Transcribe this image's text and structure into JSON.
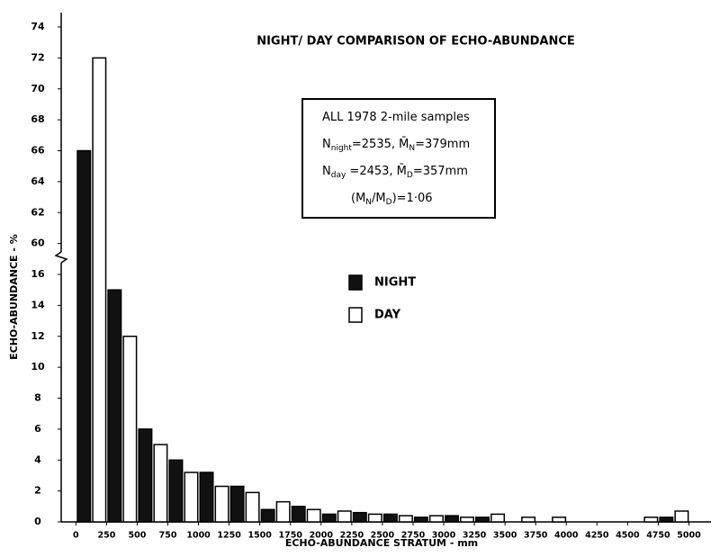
{
  "chart_data": {
    "type": "bar",
    "title": "NIGHT/ DAY COMPARISON OF ECHO-ABUNDANCE",
    "xlabel": "ECHO-ABUNDANCE STRATUM - mm",
    "ylabel": "ECHO-ABUNDANCE - %",
    "x": [
      0,
      250,
      500,
      750,
      1000,
      1250,
      1500,
      1750,
      2000,
      2250,
      2500,
      2750,
      3000,
      3250,
      3500,
      3750,
      4000,
      4250,
      4500,
      4750
    ],
    "series": [
      {
        "name": "NIGHT",
        "color": "#111111",
        "values": [
          66,
          15,
          6,
          4,
          3.2,
          2.3,
          0.8,
          1.0,
          0.5,
          0.6,
          0.5,
          0.3,
          0.4,
          0.3,
          0,
          0,
          0,
          0,
          0,
          0.3
        ]
      },
      {
        "name": "DAY",
        "color": "#ffffff",
        "values": [
          72,
          12,
          5,
          3.2,
          2.3,
          1.9,
          1.3,
          0.8,
          0.7,
          0.5,
          0.4,
          0.4,
          0.3,
          0.5,
          0.3,
          0.3,
          0,
          0,
          0.3,
          0.7
        ]
      }
    ],
    "xlim": [
      -120,
      5180
    ],
    "xticks": [
      0,
      250,
      500,
      750,
      1000,
      1250,
      1500,
      1750,
      2000,
      2250,
      2500,
      2750,
      3000,
      3250,
      3500,
      3750,
      4000,
      4250,
      4500,
      4750,
      5000
    ],
    "ylim": [
      0,
      74
    ],
    "ybreak": [
      17,
      59
    ],
    "yticks": [
      0,
      2,
      4,
      6,
      8,
      10,
      12,
      14,
      16,
      60,
      62,
      64,
      66,
      68,
      70,
      72,
      74
    ],
    "annotation": [
      [
        {
          "text": "ALL 1978 2-mile samples"
        }
      ],
      [
        {
          "text": "N"
        },
        {
          "text": "night",
          "sub": true
        },
        {
          "text": "=2535, M̄"
        },
        {
          "text": "N",
          "sub": true
        },
        {
          "text": "=379mm"
        }
      ],
      [
        {
          "text": "N"
        },
        {
          "text": "day",
          "sub": true
        },
        {
          "text": " =2453, M̄"
        },
        {
          "text": "D",
          "sub": true
        },
        {
          "text": "=357mm"
        }
      ],
      [
        {
          "text": "(M"
        },
        {
          "text": "N",
          "sub": true
        },
        {
          "text": "/M"
        },
        {
          "text": "D",
          "sub": true
        },
        {
          "text": ")=1·06"
        }
      ]
    ],
    "legend": "center"
  }
}
